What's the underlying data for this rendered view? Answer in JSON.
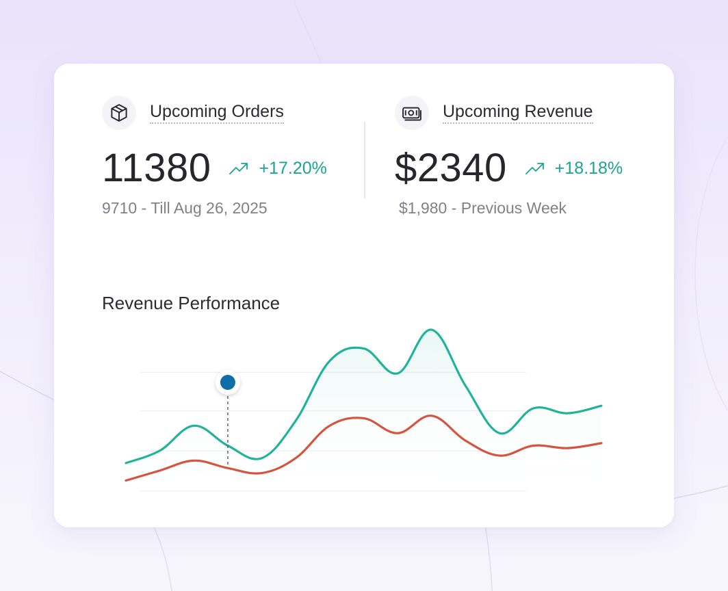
{
  "stats": {
    "orders": {
      "title": "Upcoming Orders",
      "value": "11380",
      "change": "+17.20%",
      "subtext": "9710 - Till Aug 26, 2025",
      "icon": "box-icon"
    },
    "revenue": {
      "title": "Upcoming Revenue",
      "value": "$2340",
      "change": "+18.18%",
      "subtext": "$1,980 - Previous Week",
      "icon": "cash-icon"
    },
    "trend_icon": "trending-up-icon"
  },
  "chart_title": "Revenue Performance",
  "colors": {
    "accent_teal": "#1aa58e",
    "series_teal": "#1fb39a",
    "series_red": "#d6543f",
    "marker_blue": "#0e6ea8"
  },
  "chart_data": {
    "type": "area",
    "x": [
      0,
      1,
      2,
      3,
      4,
      5,
      6,
      7,
      8,
      9,
      10,
      11,
      12,
      13,
      14
    ],
    "series": [
      {
        "values": [
          28,
          38,
          58,
          42,
          32,
          62,
          110,
          120,
          100,
          135,
          90,
          52,
          72,
          68,
          74
        ]
      },
      {
        "values": [
          14,
          22,
          30,
          24,
          20,
          32,
          58,
          64,
          52,
          66,
          46,
          34,
          42,
          40,
          44
        ]
      }
    ],
    "marker_index": 3,
    "grid": true,
    "xlabel": "",
    "ylabel": ""
  }
}
